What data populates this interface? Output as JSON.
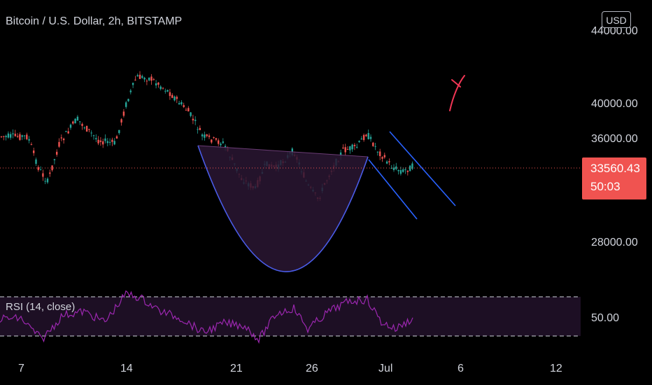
{
  "header": {
    "symbol": "Bitcoin / U.S. Dollar, 2h, BITSTAMP",
    "currency": "USD"
  },
  "price_axis": {
    "labels": [
      "44000.00",
      "40000.00",
      "36000.00",
      "28000.00"
    ]
  },
  "current_price": {
    "value": "33560.43",
    "countdown": "50:03",
    "color": "#f05350"
  },
  "rsi": {
    "label": "RSI (14, close)",
    "axis_label": "50.00",
    "color": "#9c27b0"
  },
  "time_axis": {
    "labels": [
      "7",
      "14",
      "21",
      "26",
      "Jul",
      "6",
      "12"
    ]
  },
  "drawings": {
    "cup_color": "#4a5ce8",
    "channel_color": "#2962ff",
    "x_mark_color": "#f23655"
  },
  "colors": {
    "up": "#26a69a",
    "down": "#ef5350",
    "background": "#000000"
  }
}
